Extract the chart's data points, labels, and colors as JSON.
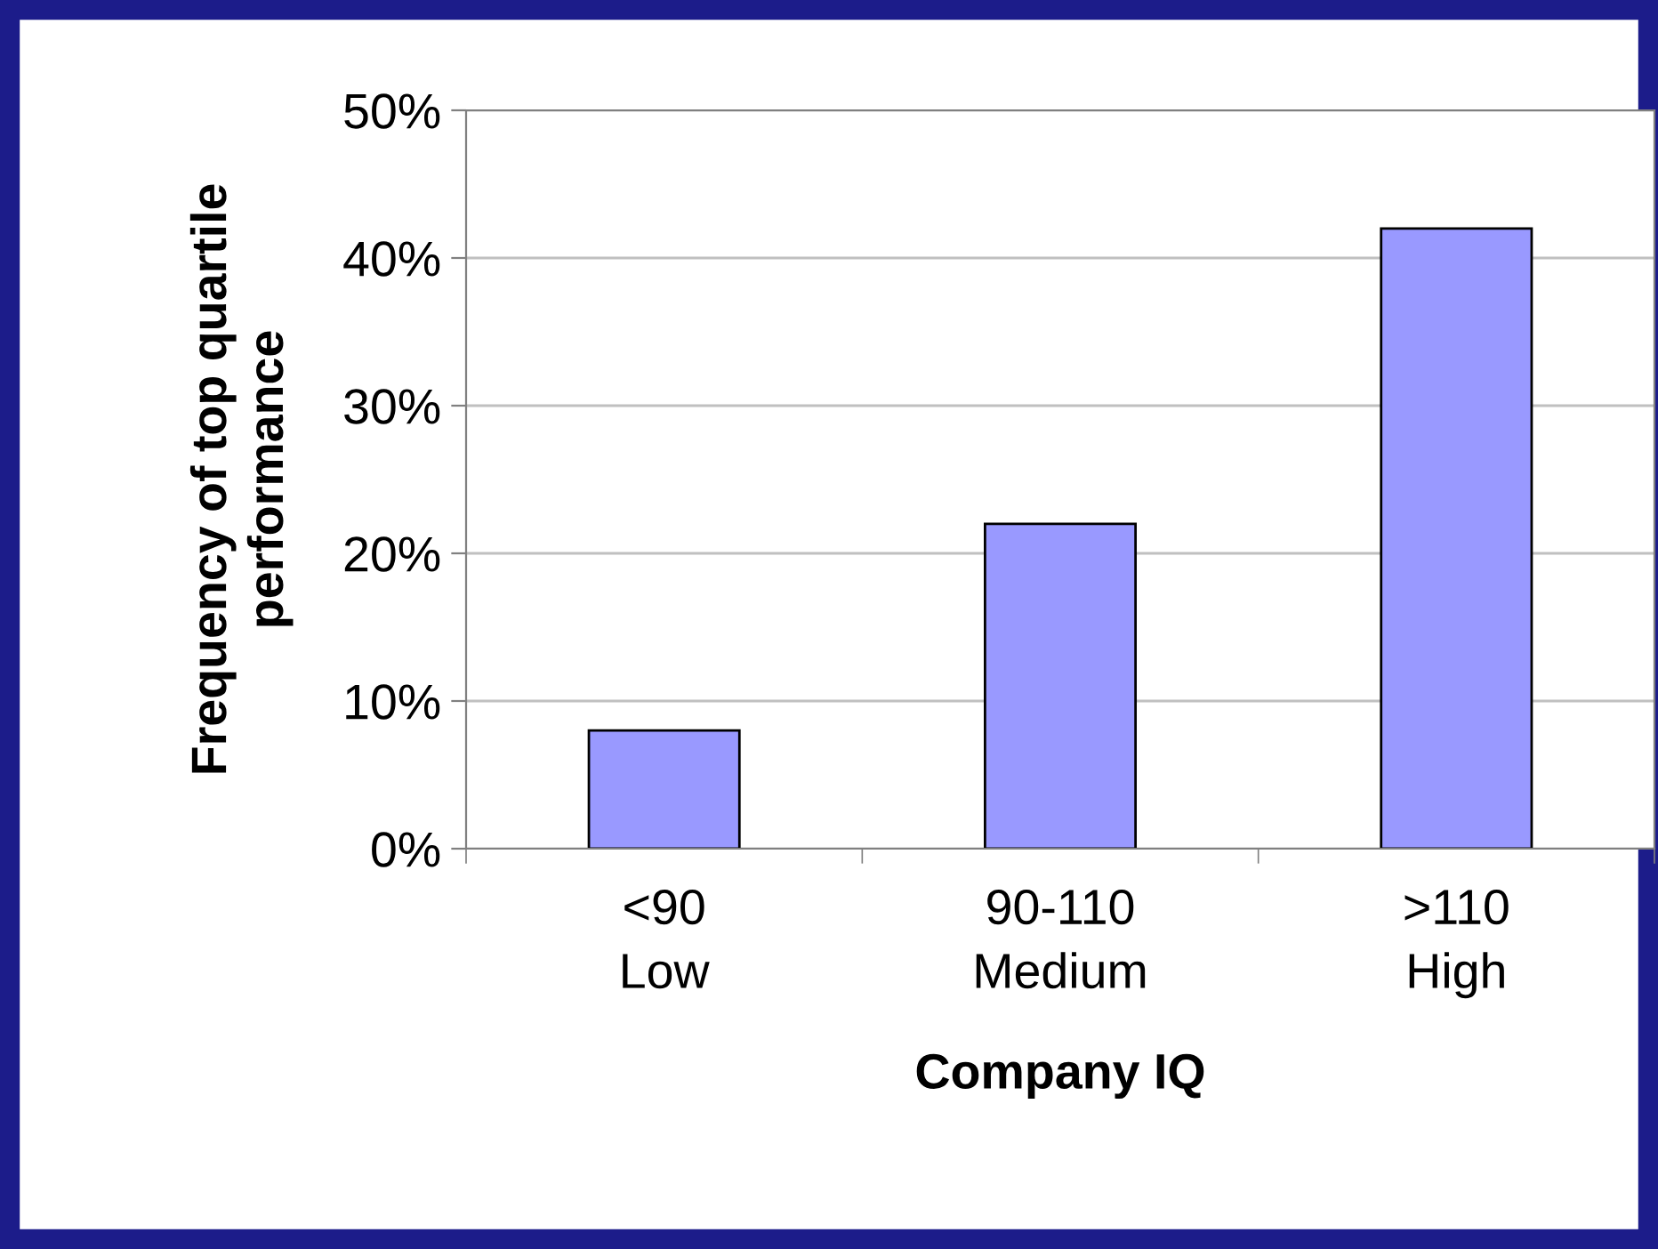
{
  "chart_data": {
    "type": "bar",
    "xlabel": "Company IQ",
    "ylabel": "Frequency of top quartile\nperformance",
    "categories": [
      "<90\nLow",
      "90-110\nMedium",
      ">110\nHigh"
    ],
    "values": [
      8,
      22,
      42
    ],
    "color": "#9999ff",
    "ylim": [
      0,
      50
    ],
    "yticks": [
      {
        "value": 0,
        "label": "0%"
      },
      {
        "value": 10,
        "label": "10%"
      },
      {
        "value": 20,
        "label": "20%"
      },
      {
        "value": 30,
        "label": "30%"
      },
      {
        "value": 40,
        "label": "40%"
      },
      {
        "value": 50,
        "label": "50%"
      }
    ],
    "grid": "y"
  }
}
